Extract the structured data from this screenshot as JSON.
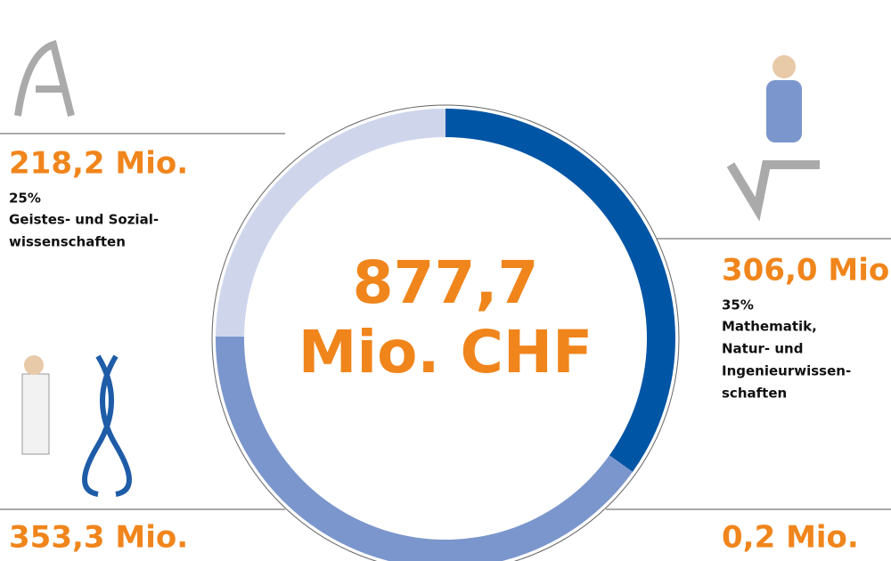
{
  "chart_data": {
    "type": "donut",
    "center_label": [
      "877,7",
      "Mio. CHF"
    ],
    "categories": [
      [
        "Mathematik,",
        "Natur- und",
        "Ingenieurwissen-",
        "schaften"
      ],
      null,
      null,
      [
        "Geistes- und Sozial-",
        "wissenschaften"
      ]
    ],
    "values": [
      306.0,
      0.2,
      353.3,
      218.2
    ],
    "value_labels": [
      "306,0 Mio.",
      "0,2 Mio.",
      "353,3 Mio.",
      "218,2 Mio."
    ],
    "shares": [
      35,
      null,
      null,
      25
    ],
    "share_labels": [
      "35%",
      null,
      null,
      "25%"
    ],
    "colors": [
      "#0055a5",
      "#3a6fb8",
      "#7b96cc",
      "#cfd6ec"
    ]
  }
}
